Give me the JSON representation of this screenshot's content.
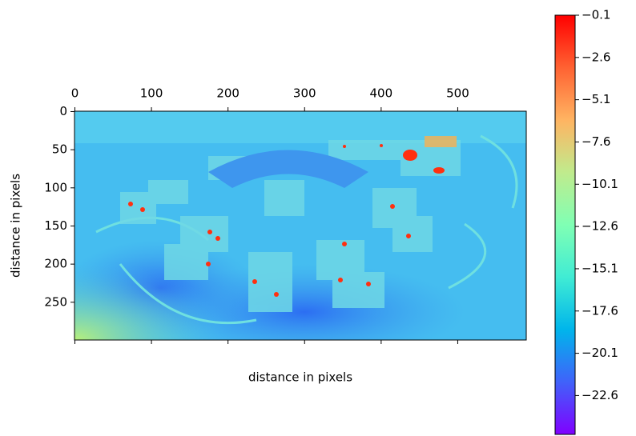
{
  "chart_data": {
    "type": "image",
    "x_label": "distance in pixels",
    "y_label": "distance in pixels",
    "xlim": [
      -0.5,
      589.5
    ],
    "ylim": [
      299.5,
      -0.5
    ],
    "xticks": [
      0,
      100,
      200,
      300,
      400,
      500
    ],
    "yticks": [
      0,
      50,
      100,
      150,
      200,
      250
    ],
    "colormap": "rainbow",
    "clim": [
      -24.9,
      -0.1
    ],
    "colorbar_ticks": [
      {
        "value": -0.1,
        "label": "−0.1"
      },
      {
        "value": -2.6,
        "label": "−2.6"
      },
      {
        "value": -5.1,
        "label": "−5.1"
      },
      {
        "value": -7.6,
        "label": "−7.6"
      },
      {
        "value": -10.1,
        "label": "−10.1"
      },
      {
        "value": -12.6,
        "label": "−12.6"
      },
      {
        "value": -15.1,
        "label": "−15.1"
      },
      {
        "value": -17.6,
        "label": "−17.6"
      },
      {
        "value": -20.1,
        "label": "−20.1"
      },
      {
        "value": -22.6,
        "label": "−22.6"
      }
    ]
  }
}
